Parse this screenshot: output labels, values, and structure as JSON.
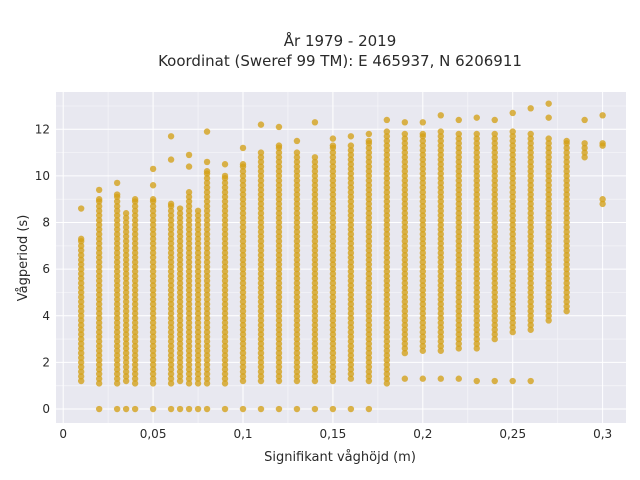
{
  "chart_data": {
    "type": "scatter",
    "title_lines": [
      "År 1979 - 2019",
      "Koordinat (Sweref 99 TM): E 465937, N 6206911"
    ],
    "xlabel": "Signifikant våghöjd (m)",
    "ylabel": "Vågperiod (s)",
    "xlim": [
      -0.004,
      0.313
    ],
    "ylim": [
      -0.6,
      13.6
    ],
    "x_ticks": [
      0,
      0.05,
      0.1,
      0.15,
      0.2,
      0.25,
      0.3
    ],
    "x_tick_labels": [
      "0",
      "0,05",
      "0,1",
      "0,15",
      "0,2",
      "0,25",
      "0,3"
    ],
    "y_ticks": [
      0,
      2,
      4,
      6,
      8,
      10,
      12
    ],
    "y_tick_labels": [
      "0",
      "2",
      "4",
      "6",
      "8",
      "10",
      "12"
    ],
    "grid": true,
    "marker_color": "#d4a017",
    "plot_background": "#e8e8f0",
    "series": [
      {
        "columns": [
          {
            "x": 0.01,
            "ymin": 1.2,
            "ymax": 7.3,
            "extra": [
              8.6
            ]
          },
          {
            "x": 0.02,
            "ymin": 1.1,
            "ymax": 9.0,
            "extra": [
              0.0,
              9.4
            ]
          },
          {
            "x": 0.03,
            "ymin": 1.1,
            "ymax": 9.2,
            "extra": [
              0.0,
              9.7
            ]
          },
          {
            "x": 0.035,
            "ymin": 1.2,
            "ymax": 8.4,
            "extra": [
              0.0
            ]
          },
          {
            "x": 0.04,
            "ymin": 1.1,
            "ymax": 9.0,
            "extra": [
              0.0
            ]
          },
          {
            "x": 0.05,
            "ymin": 1.1,
            "ymax": 9.0,
            "extra": [
              0.0,
              9.6,
              10.3
            ]
          },
          {
            "x": 0.06,
            "ymin": 1.1,
            "ymax": 8.8,
            "extra": [
              0.0,
              10.7,
              11.7
            ]
          },
          {
            "x": 0.065,
            "ymin": 1.2,
            "ymax": 8.6,
            "extra": [
              0.0
            ]
          },
          {
            "x": 0.07,
            "ymin": 1.1,
            "ymax": 9.3,
            "extra": [
              0.0,
              10.4,
              10.9
            ]
          },
          {
            "x": 0.075,
            "ymin": 1.1,
            "ymax": 8.5,
            "extra": [
              0.0
            ]
          },
          {
            "x": 0.08,
            "ymin": 1.1,
            "ymax": 10.2,
            "extra": [
              0.0,
              10.6,
              11.9
            ]
          },
          {
            "x": 0.09,
            "ymin": 1.1,
            "ymax": 10.0,
            "extra": [
              0.0,
              10.5
            ]
          },
          {
            "x": 0.1,
            "ymin": 1.2,
            "ymax": 10.5,
            "extra": [
              0.0,
              11.2
            ]
          },
          {
            "x": 0.11,
            "ymin": 1.2,
            "ymax": 11.0,
            "extra": [
              0.0,
              12.2
            ]
          },
          {
            "x": 0.12,
            "ymin": 1.2,
            "ymax": 11.3,
            "extra": [
              0.0,
              12.1
            ]
          },
          {
            "x": 0.13,
            "ymin": 1.2,
            "ymax": 11.0,
            "extra": [
              0.0,
              11.5
            ]
          },
          {
            "x": 0.14,
            "ymin": 1.2,
            "ymax": 10.8,
            "extra": [
              0.0,
              12.3
            ]
          },
          {
            "x": 0.15,
            "ymin": 1.2,
            "ymax": 11.3,
            "extra": [
              0.0,
              11.6
            ]
          },
          {
            "x": 0.16,
            "ymin": 1.3,
            "ymax": 11.3,
            "extra": [
              0.0,
              11.7
            ]
          },
          {
            "x": 0.17,
            "ymin": 1.2,
            "ymax": 11.5,
            "extra": [
              0.0,
              11.8
            ]
          },
          {
            "x": 0.18,
            "ymin": 1.1,
            "ymax": 11.9,
            "extra": [
              12.4
            ]
          },
          {
            "x": 0.19,
            "ymin": 2.4,
            "ymax": 11.8,
            "extra": [
              1.3,
              12.3
            ]
          },
          {
            "x": 0.2,
            "ymin": 2.5,
            "ymax": 11.8,
            "extra": [
              1.3,
              12.3
            ]
          },
          {
            "x": 0.21,
            "ymin": 2.5,
            "ymax": 11.9,
            "extra": [
              1.3,
              12.6
            ]
          },
          {
            "x": 0.22,
            "ymin": 2.6,
            "ymax": 11.8,
            "extra": [
              1.3,
              12.4
            ]
          },
          {
            "x": 0.23,
            "ymin": 2.6,
            "ymax": 11.8,
            "extra": [
              1.2,
              12.5
            ]
          },
          {
            "x": 0.24,
            "ymin": 3.0,
            "ymax": 11.8,
            "extra": [
              1.2,
              12.4
            ]
          },
          {
            "x": 0.25,
            "ymin": 3.3,
            "ymax": 11.9,
            "extra": [
              1.2,
              12.7
            ]
          },
          {
            "x": 0.26,
            "ymin": 3.4,
            "ymax": 11.8,
            "extra": [
              1.2,
              12.9
            ]
          },
          {
            "x": 0.27,
            "ymin": 3.8,
            "ymax": 11.6,
            "extra": [
              12.5,
              13.1
            ]
          },
          {
            "x": 0.28,
            "ymin": 4.2,
            "ymax": 11.5,
            "extra": []
          },
          {
            "x": 0.29,
            "ymin": 10.8,
            "ymax": 11.4,
            "extra": [
              12.4
            ]
          },
          {
            "x": 0.3,
            "ymin": 11.3,
            "ymax": 11.4,
            "extra": [
              8.8,
              9.0,
              12.6
            ]
          }
        ]
      }
    ]
  }
}
